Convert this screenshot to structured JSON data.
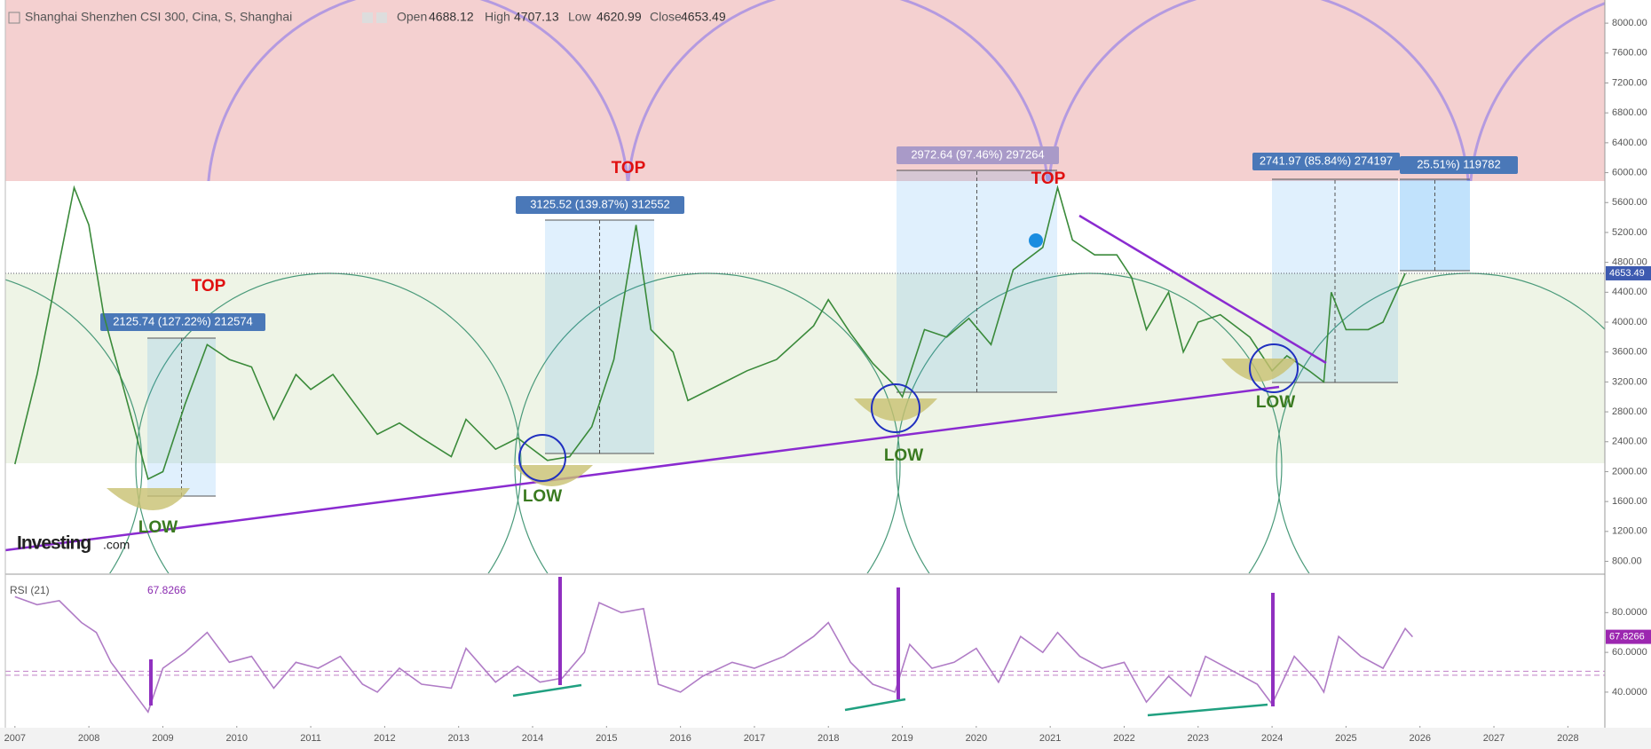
{
  "header": {
    "symbol": "Shanghai Shenzhen CSI 300, Cina, S, Shanghai",
    "open_label": "Open",
    "open": 4688.12,
    "high_label": "High",
    "high": 4707.13,
    "low_label": "Low",
    "low": 4620.99,
    "close_label": "Close",
    "close": 4653.49
  },
  "logo": {
    "name": "Investing",
    "suffix": ".com"
  },
  "chart_data": [
    {
      "type": "line",
      "color": "#3a8a3a",
      "x": [
        2007.0,
        2007.3,
        2007.6,
        2007.8,
        2008.0,
        2008.2,
        2008.5,
        2008.8,
        2009.0,
        2009.3,
        2009.6,
        2009.9,
        2010.2,
        2010.5,
        2010.8,
        2011.0,
        2011.3,
        2011.6,
        2011.9,
        2012.2,
        2012.5,
        2012.9,
        2013.1,
        2013.5,
        2013.8,
        2014.2,
        2014.5,
        2014.8,
        2015.1,
        2015.4,
        2015.6,
        2015.9,
        2016.1,
        2016.5,
        2016.9,
        2017.3,
        2017.8,
        2018.0,
        2018.3,
        2018.6,
        2018.9,
        2019.0,
        2019.3,
        2019.6,
        2019.9,
        2020.2,
        2020.5,
        2020.9,
        2021.1,
        2021.3,
        2021.6,
        2021.9,
        2022.1,
        2022.3,
        2022.6,
        2022.8,
        2023.0,
        2023.3,
        2023.7,
        2024.0,
        2024.2,
        2024.5,
        2024.7,
        2024.8,
        2025.0,
        2025.3,
        2025.5,
        2025.8
      ],
      "values": [
        2100,
        3300,
        4800,
        5800,
        5300,
        4100,
        3000,
        1900,
        2000,
        2900,
        3700,
        3500,
        3400,
        2700,
        3300,
        3100,
        3300,
        2900,
        2500,
        2650,
        2450,
        2200,
        2700,
        2300,
        2450,
        2150,
        2200,
        2600,
        3500,
        5300,
        3900,
        3600,
        2950,
        3150,
        3350,
        3500,
        3950,
        4300,
        3850,
        3450,
        3150,
        3000,
        3900,
        3800,
        4050,
        3700,
        4700,
        5000,
        5800,
        5100,
        4900,
        4900,
        4600,
        3900,
        4400,
        3600,
        4000,
        4100,
        3800,
        3350,
        3550,
        3350,
        3200,
        4400,
        3900,
        3900,
        4000,
        4653.49
      ],
      "xlim": [
        2006.87,
        2028.5
      ],
      "ylim": [
        640,
        8310
      ],
      "xticks": [
        2007,
        2008,
        2009,
        2010,
        2011,
        2012,
        2013,
        2014,
        2015,
        2016,
        2017,
        2018,
        2019,
        2020,
        2021,
        2022,
        2023,
        2024,
        2025,
        2026,
        2027,
        2028
      ],
      "yticks": [
        {
          "value": 800,
          "label": "800.00"
        },
        {
          "value": 1200,
          "label": "1200.00"
        },
        {
          "value": 1600,
          "label": "1600.00"
        },
        {
          "value": 2000,
          "label": "2000.00"
        },
        {
          "value": 2400,
          "label": "2400.00"
        },
        {
          "value": 2800,
          "label": "2800.00"
        },
        {
          "value": 3200,
          "label": "3200.00"
        },
        {
          "value": 3600,
          "label": "3600.00"
        },
        {
          "value": 4000,
          "label": "4000.00"
        },
        {
          "value": 4400,
          "label": "4400.00"
        },
        {
          "value": 4800,
          "label": "4800.00"
        },
        {
          "value": 5200,
          "label": "5200.00"
        },
        {
          "value": 5600,
          "label": "5600.00"
        },
        {
          "value": 6000,
          "label": "6000.00"
        },
        {
          "value": 6400,
          "label": "6400.00"
        },
        {
          "value": 6800,
          "label": "6800.00"
        },
        {
          "value": 7200,
          "label": "7200.00"
        },
        {
          "value": 7600,
          "label": "7600.00"
        },
        {
          "value": 8000,
          "label": "8000.00"
        }
      ],
      "annotations": [
        "TOP",
        "TOP",
        "TOP",
        "LOW",
        "LOW",
        "LOW",
        "LOW"
      ],
      "measure_labels": [
        "2125.74 (127.22%) 212574",
        "3125.52 (139.87%) 312552",
        "2972.64 (97.46%) 297264",
        "2741.97 (85.84%) 274197",
        "25.51%) 119782"
      ]
    },
    {
      "type": "line",
      "title": "RSI (21)",
      "color": "#b07cc6",
      "x": [
        2007.0,
        2007.3,
        2007.6,
        2007.9,
        2008.1,
        2008.3,
        2008.5,
        2008.8,
        2009.0,
        2009.3,
        2009.6,
        2009.9,
        2010.2,
        2010.5,
        2010.8,
        2011.1,
        2011.4,
        2011.7,
        2011.9,
        2012.2,
        2012.5,
        2012.9,
        2013.1,
        2013.5,
        2013.8,
        2014.1,
        2014.4,
        2014.7,
        2014.9,
        2015.2,
        2015.5,
        2015.7,
        2016.0,
        2016.3,
        2016.7,
        2017.0,
        2017.4,
        2017.8,
        2018.0,
        2018.3,
        2018.6,
        2018.9,
        2019.1,
        2019.4,
        2019.7,
        2020.0,
        2020.3,
        2020.6,
        2020.9,
        2021.1,
        2021.4,
        2021.7,
        2022.0,
        2022.3,
        2022.6,
        2022.9,
        2023.1,
        2023.5,
        2023.8,
        2024.0,
        2024.3,
        2024.6,
        2024.7,
        2024.9,
        2025.2,
        2025.5,
        2025.8,
        2025.9
      ],
      "values": [
        88,
        84,
        86,
        75,
        70,
        55,
        45,
        30,
        52,
        60,
        70,
        55,
        58,
        42,
        55,
        52,
        58,
        44,
        40,
        52,
        44,
        42,
        62,
        45,
        53,
        45,
        47,
        60,
        85,
        80,
        82,
        44,
        40,
        48,
        55,
        52,
        58,
        68,
        75,
        55,
        44,
        40,
        64,
        52,
        55,
        62,
        45,
        68,
        60,
        70,
        58,
        52,
        55,
        35,
        48,
        38,
        58,
        50,
        44,
        34,
        58,
        46,
        40,
        68,
        58,
        52,
        72,
        67.8266
      ],
      "ylim": [
        23,
        98
      ],
      "yticks": [
        {
          "value": 40,
          "label": "40.0000"
        },
        {
          "value": 60,
          "label": "60.0000"
        },
        {
          "value": 80,
          "label": "80.0000"
        }
      ],
      "levels": [
        48.5,
        50.5
      ]
    }
  ]
}
